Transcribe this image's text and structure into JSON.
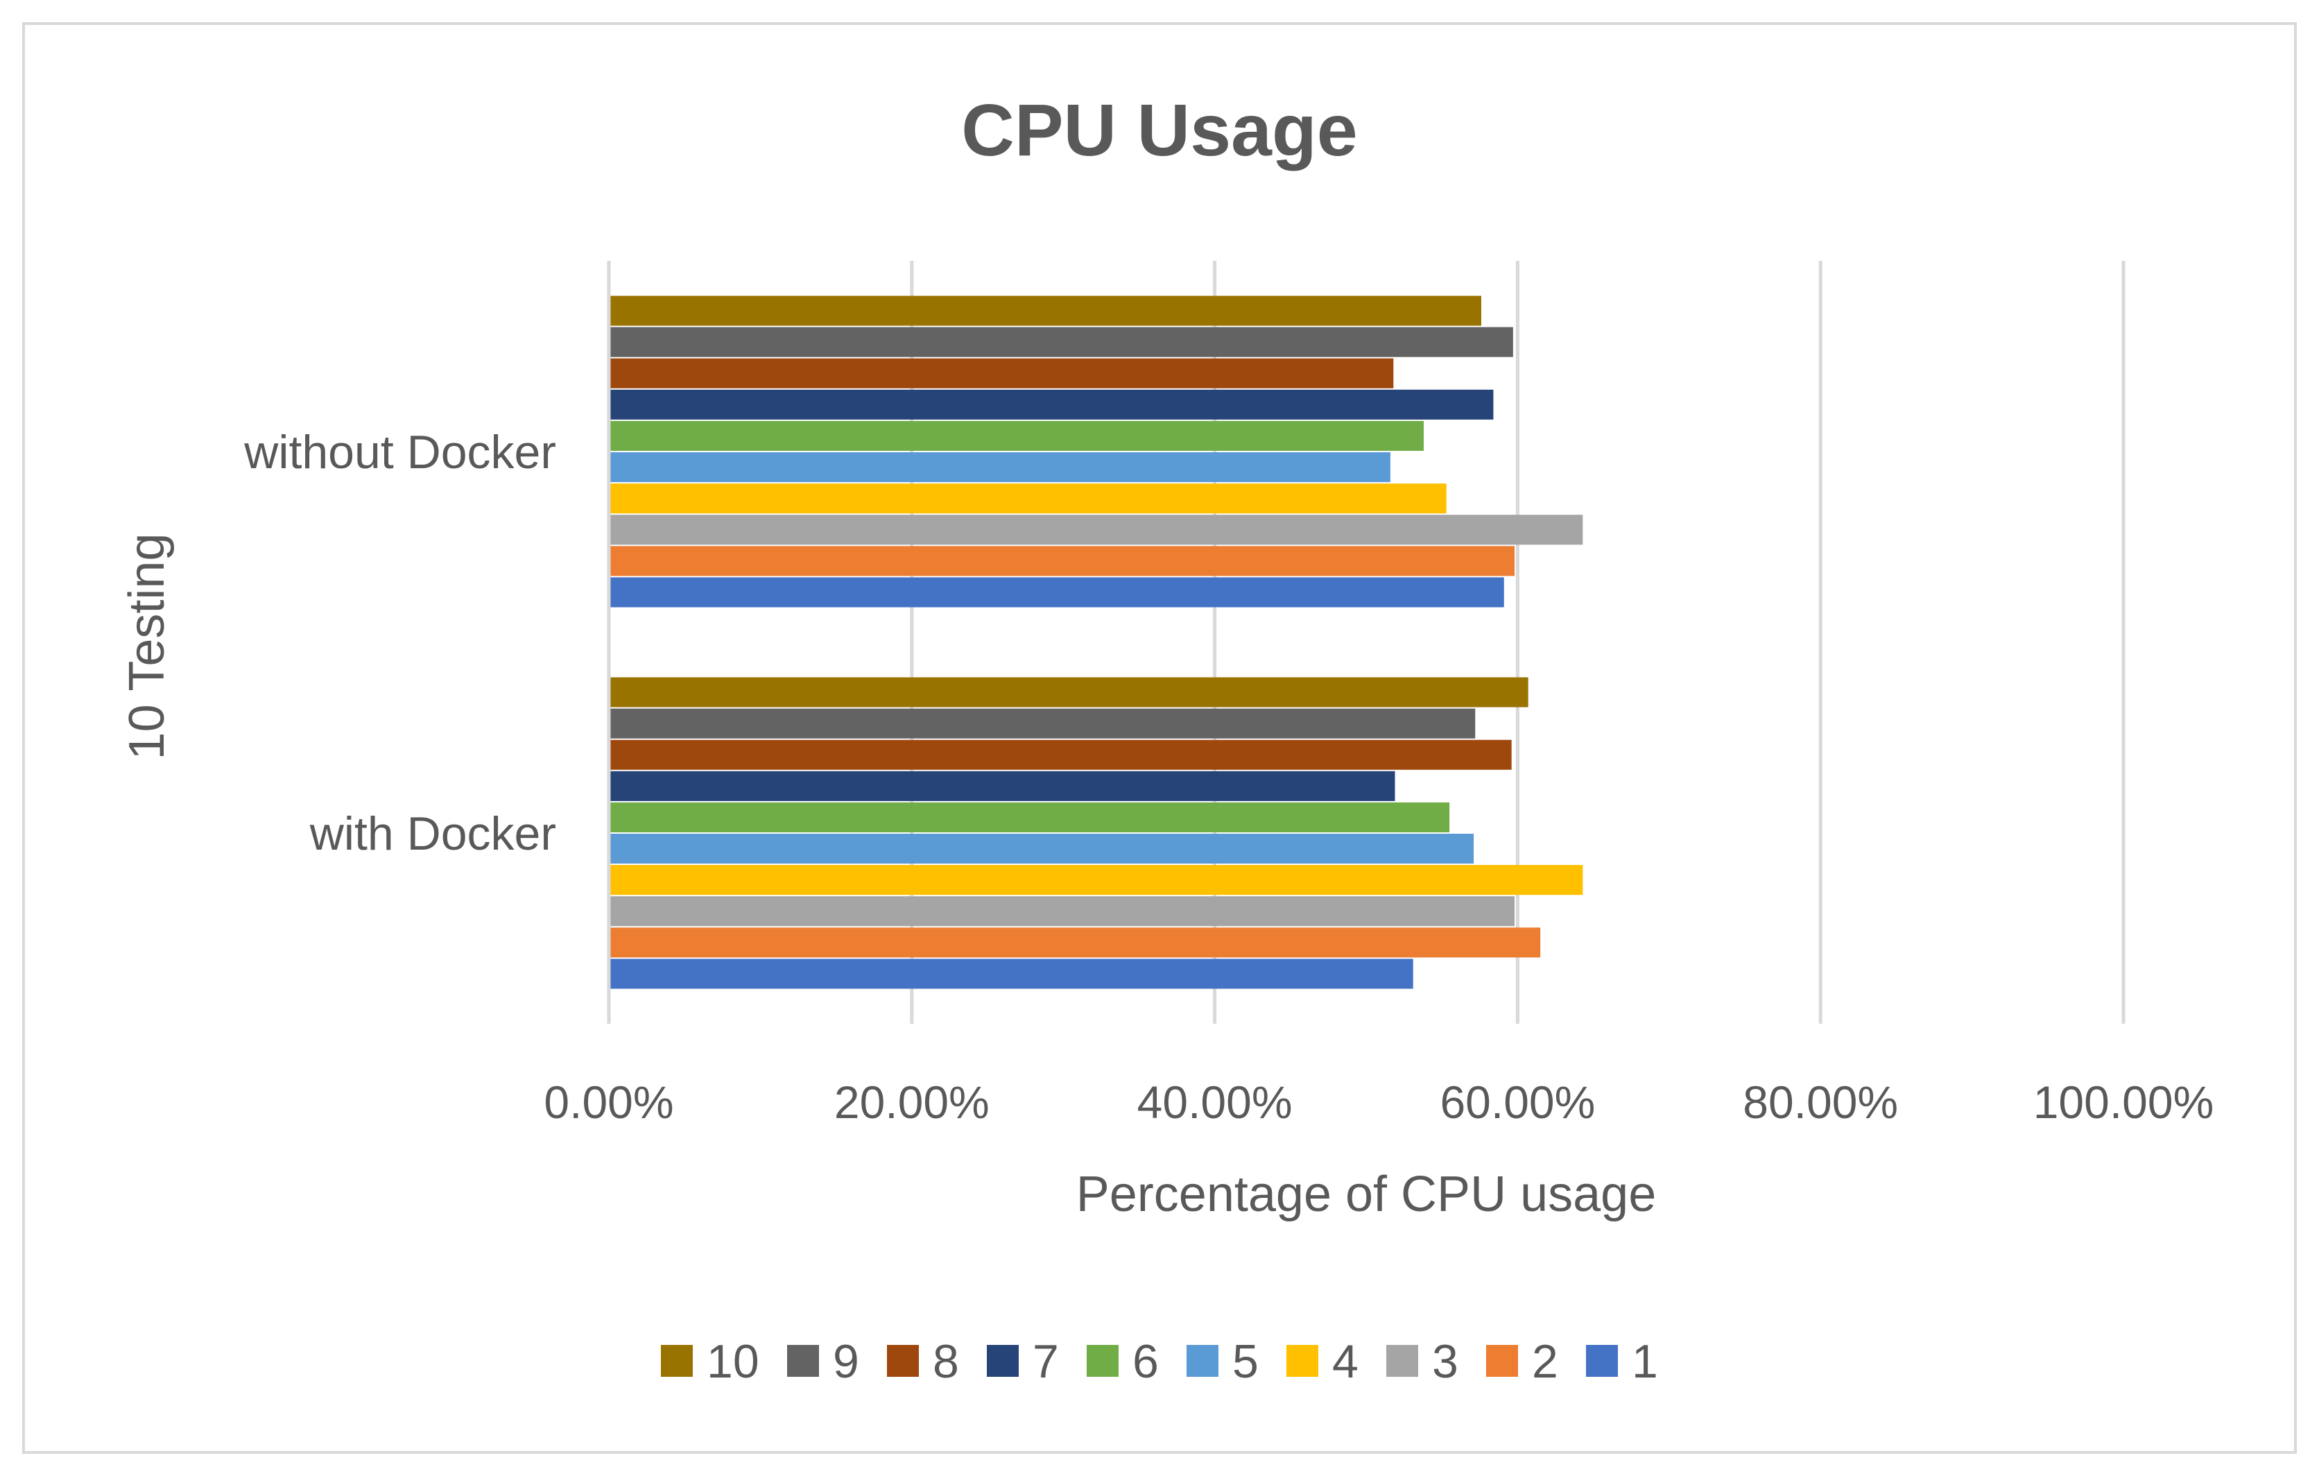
{
  "chart_data": {
    "type": "bar",
    "orientation": "horizontal",
    "title": "CPU Usage",
    "xlabel": "Percentage of CPU usage",
    "ylabel": "10 Testing",
    "xlim": [
      0,
      100
    ],
    "x_ticks": [
      "0.00%",
      "20.00%",
      "40.00%",
      "60.00%",
      "80.00%",
      "100.00%"
    ],
    "categories": [
      "without Docker",
      "with Docker"
    ],
    "series": [
      {
        "name": "1",
        "color": "#4472C4",
        "values": [
          59.1,
          53.1
        ]
      },
      {
        "name": "2",
        "color": "#ED7D31",
        "values": [
          59.8,
          61.5
        ]
      },
      {
        "name": "3",
        "color": "#A5A5A5",
        "values": [
          64.3,
          59.8
        ]
      },
      {
        "name": "4",
        "color": "#FFC000",
        "values": [
          55.3,
          64.3
        ]
      },
      {
        "name": "5",
        "color": "#5B9BD5",
        "values": [
          51.6,
          57.1
        ]
      },
      {
        "name": "6",
        "color": "#70AD47",
        "values": [
          53.8,
          55.5
        ]
      },
      {
        "name": "7",
        "color": "#264478",
        "values": [
          58.4,
          51.9
        ]
      },
      {
        "name": "8",
        "color": "#9E480E",
        "values": [
          51.8,
          59.6
        ]
      },
      {
        "name": "9",
        "color": "#636363",
        "values": [
          59.7,
          57.2
        ]
      },
      {
        "name": "10",
        "color": "#997300",
        "values": [
          57.6,
          60.7
        ]
      }
    ],
    "legend_position": "bottom",
    "grid": true
  }
}
